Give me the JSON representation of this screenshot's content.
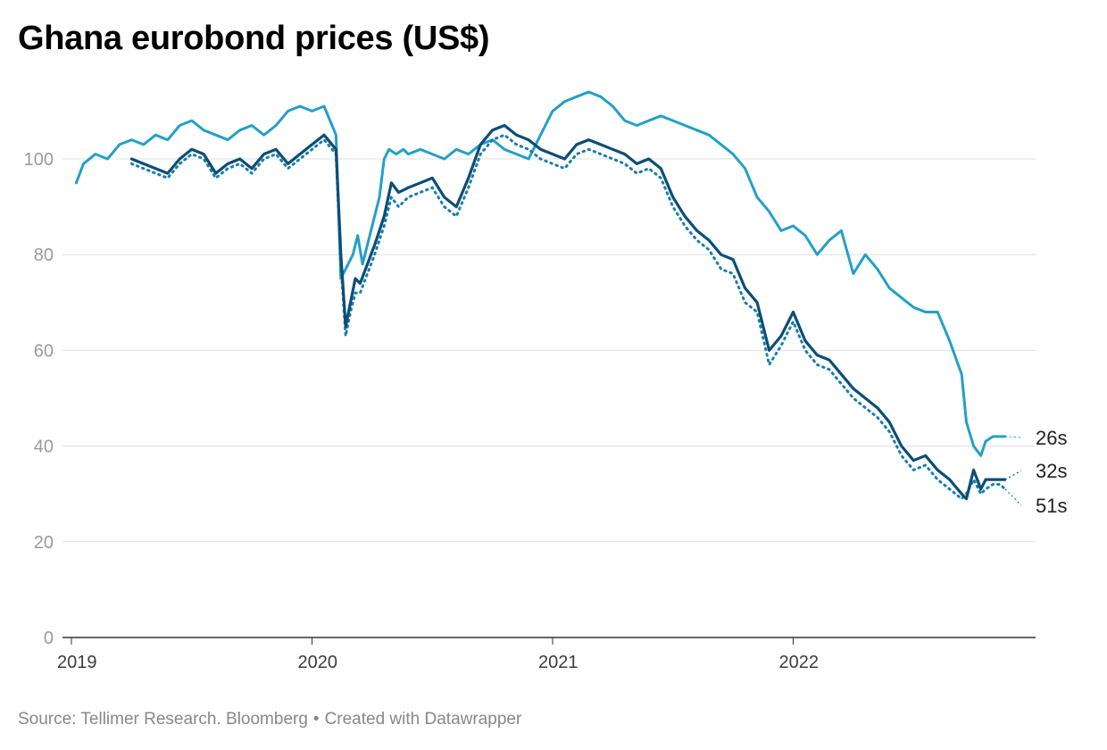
{
  "title": "Ghana eurobond prices (US$)",
  "footer": {
    "source": "Source: Tellimer Research. Bloomberg",
    "separator": "•",
    "credit": "Created with Datawrapper"
  },
  "colors": {
    "s26": "#23a0c8",
    "s32": "#0b4e78",
    "s51": "#1a7fa8",
    "grid": "#e1e1e1",
    "axis": "#333333"
  },
  "chart_data": {
    "type": "line",
    "title": "Ghana eurobond prices (US$)",
    "xlabel": "",
    "ylabel": "",
    "xlim": [
      2019.0,
      2022.9
    ],
    "ylim": [
      0,
      115
    ],
    "yticks": [
      0,
      20,
      40,
      60,
      80,
      100
    ],
    "xticks": [
      "2019",
      "2020",
      "2021",
      "2022"
    ],
    "grid": true,
    "series": [
      {
        "name": "26s",
        "style": "solid-light",
        "x": [
          2019.02,
          2019.05,
          2019.1,
          2019.15,
          2019.2,
          2019.25,
          2019.3,
          2019.35,
          2019.4,
          2019.45,
          2019.5,
          2019.55,
          2019.6,
          2019.65,
          2019.7,
          2019.75,
          2019.8,
          2019.85,
          2019.9,
          2019.95,
          2020.0,
          2020.05,
          2020.1,
          2020.12,
          2020.15,
          2020.17,
          2020.19,
          2020.21,
          2020.23,
          2020.25,
          2020.28,
          2020.3,
          2020.32,
          2020.35,
          2020.38,
          2020.4,
          2020.45,
          2020.5,
          2020.55,
          2020.6,
          2020.65,
          2020.7,
          2020.75,
          2020.8,
          2020.85,
          2020.9,
          2020.95,
          2021.0,
          2021.05,
          2021.1,
          2021.15,
          2021.2,
          2021.25,
          2021.3,
          2021.35,
          2021.4,
          2021.45,
          2021.5,
          2021.55,
          2021.6,
          2021.65,
          2021.7,
          2021.75,
          2021.8,
          2021.85,
          2021.9,
          2021.95,
          2022.0,
          2022.05,
          2022.1,
          2022.15,
          2022.2,
          2022.25,
          2022.3,
          2022.35,
          2022.4,
          2022.45,
          2022.5,
          2022.55,
          2022.6,
          2022.65,
          2022.7,
          2022.72,
          2022.75,
          2022.78,
          2022.8,
          2022.83,
          2022.86,
          2022.88
        ],
        "values": [
          95,
          99,
          101,
          100,
          103,
          104,
          103,
          105,
          104,
          107,
          108,
          106,
          105,
          104,
          106,
          107,
          105,
          107,
          110,
          111,
          110,
          111,
          105,
          75,
          78,
          80,
          84,
          78,
          82,
          86,
          92,
          100,
          102,
          101,
          102,
          101,
          102,
          101,
          100,
          102,
          101,
          103,
          104,
          102,
          101,
          100,
          105,
          110,
          112,
          113,
          114,
          113,
          111,
          108,
          107,
          108,
          109,
          108,
          107,
          106,
          105,
          103,
          101,
          98,
          92,
          89,
          85,
          86,
          84,
          80,
          83,
          85,
          76,
          80,
          77,
          73,
          71,
          69,
          68,
          68,
          62,
          55,
          45,
          40,
          38,
          41,
          42,
          42,
          42
        ]
      },
      {
        "name": "32s",
        "style": "solid-dark",
        "x": [
          2019.25,
          2019.3,
          2019.35,
          2019.4,
          2019.45,
          2019.5,
          2019.55,
          2019.6,
          2019.65,
          2019.7,
          2019.75,
          2019.8,
          2019.85,
          2019.9,
          2019.95,
          2020.0,
          2020.05,
          2020.1,
          2020.12,
          2020.14,
          2020.16,
          2020.18,
          2020.2,
          2020.23,
          2020.26,
          2020.3,
          2020.33,
          2020.36,
          2020.4,
          2020.45,
          2020.5,
          2020.55,
          2020.6,
          2020.65,
          2020.7,
          2020.75,
          2020.8,
          2020.85,
          2020.9,
          2020.95,
          2021.0,
          2021.05,
          2021.1,
          2021.15,
          2021.2,
          2021.25,
          2021.3,
          2021.35,
          2021.4,
          2021.45,
          2021.5,
          2021.55,
          2021.6,
          2021.65,
          2021.7,
          2021.75,
          2021.8,
          2021.85,
          2021.9,
          2021.95,
          2022.0,
          2022.05,
          2022.1,
          2022.15,
          2022.2,
          2022.25,
          2022.3,
          2022.35,
          2022.4,
          2022.45,
          2022.5,
          2022.55,
          2022.6,
          2022.65,
          2022.7,
          2022.72,
          2022.75,
          2022.78,
          2022.8,
          2022.83,
          2022.86,
          2022.88
        ],
        "values": [
          100,
          99,
          98,
          97,
          100,
          102,
          101,
          97,
          99,
          100,
          98,
          101,
          102,
          99,
          101,
          103,
          105,
          102,
          80,
          65,
          70,
          75,
          74,
          78,
          82,
          88,
          95,
          93,
          94,
          95,
          96,
          92,
          90,
          96,
          103,
          106,
          107,
          105,
          104,
          102,
          101,
          100,
          103,
          104,
          103,
          102,
          101,
          99,
          100,
          98,
          92,
          88,
          85,
          83,
          80,
          79,
          73,
          70,
          60,
          63,
          68,
          62,
          59,
          58,
          55,
          52,
          50,
          48,
          45,
          40,
          37,
          38,
          35,
          33,
          30,
          29,
          35,
          31,
          33,
          33,
          33,
          33
        ]
      },
      {
        "name": "51s",
        "style": "dotted",
        "x": [
          2019.25,
          2019.3,
          2019.35,
          2019.4,
          2019.45,
          2019.5,
          2019.55,
          2019.6,
          2019.65,
          2019.7,
          2019.75,
          2019.8,
          2019.85,
          2019.9,
          2019.95,
          2020.0,
          2020.05,
          2020.1,
          2020.12,
          2020.14,
          2020.16,
          2020.18,
          2020.2,
          2020.23,
          2020.26,
          2020.3,
          2020.33,
          2020.36,
          2020.4,
          2020.45,
          2020.5,
          2020.55,
          2020.6,
          2020.65,
          2020.7,
          2020.75,
          2020.8,
          2020.85,
          2020.9,
          2020.95,
          2021.0,
          2021.05,
          2021.1,
          2021.15,
          2021.2,
          2021.25,
          2021.3,
          2021.35,
          2021.4,
          2021.45,
          2021.5,
          2021.55,
          2021.6,
          2021.65,
          2021.7,
          2021.75,
          2021.8,
          2021.85,
          2021.9,
          2021.95,
          2022.0,
          2022.05,
          2022.1,
          2022.15,
          2022.2,
          2022.25,
          2022.3,
          2022.35,
          2022.4,
          2022.45,
          2022.5,
          2022.55,
          2022.6,
          2022.65,
          2022.7,
          2022.72,
          2022.75,
          2022.78,
          2022.8,
          2022.83,
          2022.86,
          2022.88
        ],
        "values": [
          99,
          98,
          97,
          96,
          99,
          101,
          100,
          96,
          98,
          99,
          97,
          100,
          101,
          98,
          100,
          102,
          104,
          101,
          78,
          63,
          68,
          72,
          72,
          76,
          80,
          86,
          92,
          90,
          92,
          93,
          94,
          90,
          88,
          94,
          101,
          104,
          105,
          103,
          102,
          100,
          99,
          98,
          101,
          102,
          101,
          100,
          99,
          97,
          98,
          96,
          90,
          86,
          83,
          81,
          77,
          76,
          70,
          68,
          57,
          61,
          66,
          60,
          57,
          56,
          53,
          50,
          48,
          46,
          43,
          38,
          35,
          36,
          33,
          31,
          29,
          30,
          33,
          30,
          31,
          32,
          32,
          31
        ]
      }
    ]
  }
}
